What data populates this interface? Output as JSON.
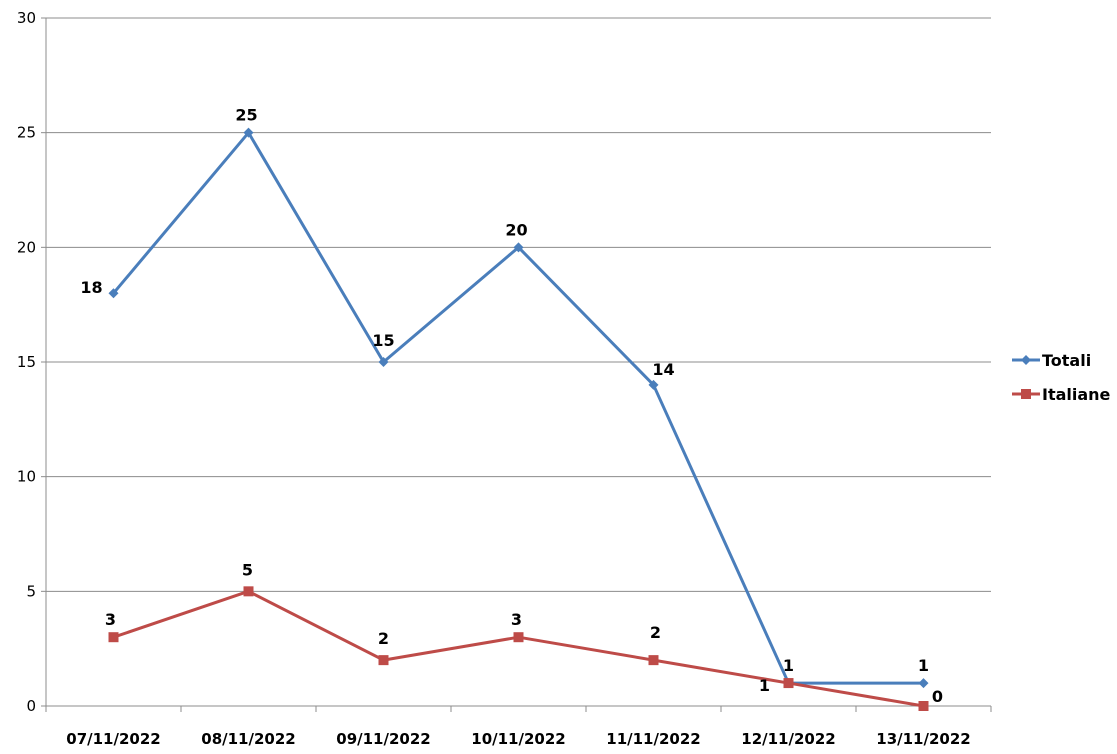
{
  "chart_data": {
    "type": "line",
    "categories": [
      "07/11/2022",
      "08/11/2022",
      "09/11/2022",
      "10/11/2022",
      "11/11/2022",
      "12/11/2022",
      "13/11/2022"
    ],
    "series": [
      {
        "name": "Totali",
        "values": [
          18,
          25,
          15,
          20,
          14,
          1,
          1
        ],
        "color": "#4a7ebb",
        "marker": "diamond"
      },
      {
        "name": "Italiane",
        "values": [
          3,
          5,
          2,
          3,
          2,
          1,
          0
        ],
        "color": "#be4b48",
        "marker": "square"
      }
    ],
    "ylim": [
      0,
      30
    ],
    "yticks": [
      0,
      5,
      10,
      15,
      20,
      25,
      30
    ],
    "grid": true,
    "legend": "right",
    "colors": {
      "grid": "#8c8c8c",
      "axis": "#8c8c8c"
    }
  }
}
